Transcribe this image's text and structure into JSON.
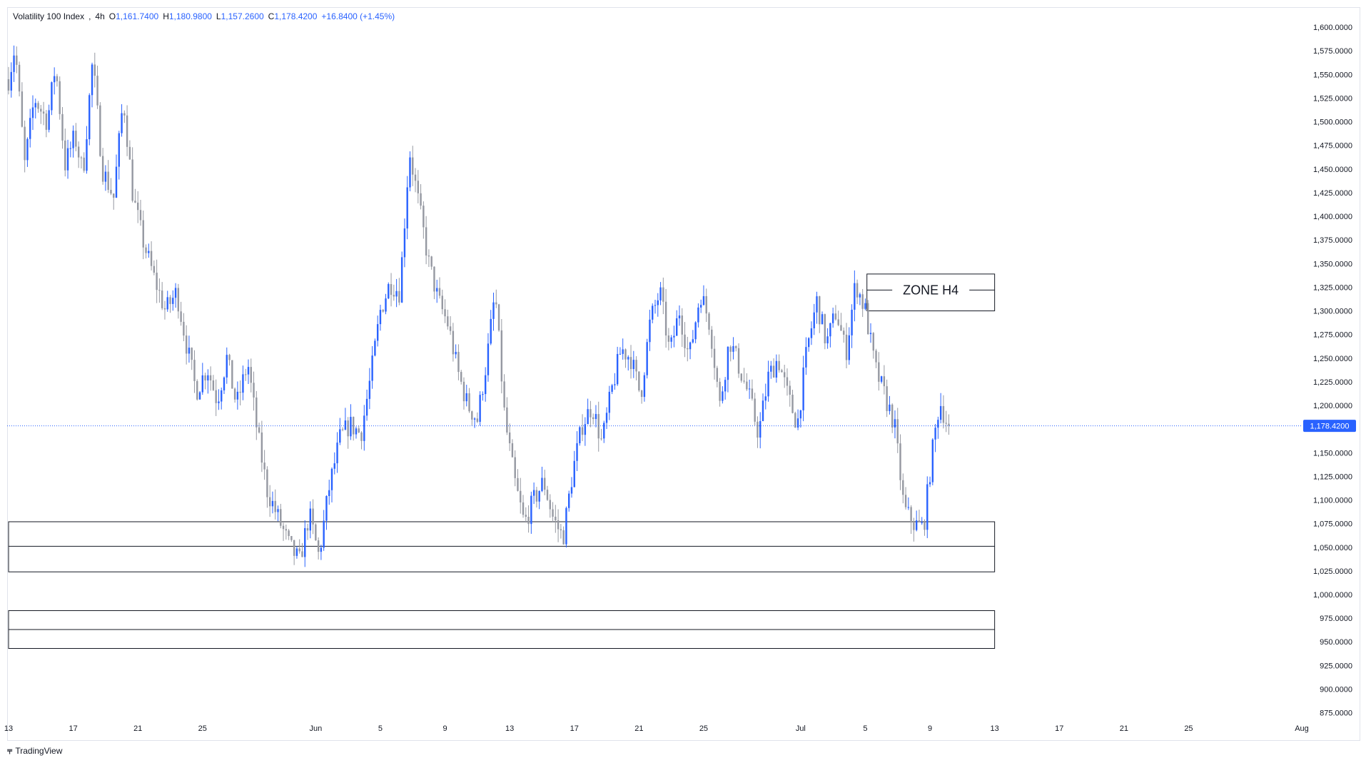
{
  "legend": {
    "symbol": "Volatility 100 Index",
    "timeframe": "4h",
    "open_label": "O",
    "open": "1,161.7400",
    "high_label": "H",
    "high": "1,180.9800",
    "low_label": "L",
    "low": "1,157.2600",
    "close_label": "C",
    "close": "1,178.4200",
    "change": "+16.8400 (+1.45%)"
  },
  "branding": {
    "logo_text": "TradingView"
  },
  "colors": {
    "up": "#2962ff",
    "down": "#9598a1",
    "price_line": "#2962ff",
    "zone": "#131722"
  },
  "chart_data": {
    "type": "candlestick",
    "current_price": 1178.42,
    "current_price_label": "1,178.4200",
    "y_ticks": [
      1600,
      1575,
      1550,
      1525,
      1500,
      1475,
      1450,
      1425,
      1400,
      1375,
      1350,
      1325,
      1300,
      1275,
      1250,
      1225,
      1200,
      1150,
      1125,
      1100,
      1075,
      1050,
      1025,
      1000,
      975,
      950,
      925,
      900,
      875
    ],
    "y_tick_labels": [
      "1,600.0000",
      "1,575.0000",
      "1,550.0000",
      "1,525.0000",
      "1,500.0000",
      "1,475.0000",
      "1,450.0000",
      "1,425.0000",
      "1,400.0000",
      "1,375.0000",
      "1,350.0000",
      "1,325.0000",
      "1,300.0000",
      "1,275.0000",
      "1,250.0000",
      "1,225.0000",
      "1,200.0000",
      "1,150.0000",
      "1,125.0000",
      "1,100.0000",
      "1,075.0000",
      "1,050.0000",
      "1,025.0000",
      "1,000.0000",
      "975.0000",
      "950.0000",
      "925.0000",
      "900.0000",
      "875.0000"
    ],
    "ylim": [
      865,
      1620
    ],
    "x_ticks": [
      {
        "day": 13,
        "label": "13"
      },
      {
        "day": 17,
        "label": "17"
      },
      {
        "day": 21,
        "label": "21"
      },
      {
        "day": 25,
        "label": "25"
      },
      {
        "day": 32,
        "label": "Jun"
      },
      {
        "day": 36,
        "label": "5"
      },
      {
        "day": 40,
        "label": "9"
      },
      {
        "day": 44,
        "label": "13"
      },
      {
        "day": 48,
        "label": "17"
      },
      {
        "day": 52,
        "label": "21"
      },
      {
        "day": 56,
        "label": "25"
      },
      {
        "day": 62,
        "label": "Jul"
      },
      {
        "day": 66,
        "label": "5"
      },
      {
        "day": 70,
        "label": "9"
      },
      {
        "day": 74,
        "label": "13"
      },
      {
        "day": 78,
        "label": "17"
      },
      {
        "day": 82,
        "label": "21"
      },
      {
        "day": 86,
        "label": "25"
      },
      {
        "day": 93,
        "label": "Aug"
      }
    ],
    "xlim": [
      13.0,
      94.5
    ],
    "path": [
      {
        "day": 13.0,
        "price": 1545
      },
      {
        "day": 13.4,
        "price": 1580
      },
      {
        "day": 14.0,
        "price": 1455
      },
      {
        "day": 14.6,
        "price": 1525
      },
      {
        "day": 15.4,
        "price": 1500
      },
      {
        "day": 15.9,
        "price": 1560
      },
      {
        "day": 16.5,
        "price": 1455
      },
      {
        "day": 17.1,
        "price": 1485
      },
      {
        "day": 17.6,
        "price": 1445
      },
      {
        "day": 18.2,
        "price": 1565
      },
      {
        "day": 18.8,
        "price": 1450
      },
      {
        "day": 19.5,
        "price": 1420
      },
      {
        "day": 20.1,
        "price": 1525
      },
      {
        "day": 20.7,
        "price": 1420
      },
      {
        "day": 21.3,
        "price": 1375
      },
      {
        "day": 22.0,
        "price": 1335
      },
      {
        "day": 22.7,
        "price": 1300
      },
      {
        "day": 23.4,
        "price": 1320
      },
      {
        "day": 24.0,
        "price": 1265
      },
      {
        "day": 24.6,
        "price": 1215
      },
      {
        "day": 25.3,
        "price": 1240
      },
      {
        "day": 25.9,
        "price": 1205
      },
      {
        "day": 26.5,
        "price": 1250
      },
      {
        "day": 27.1,
        "price": 1200
      },
      {
        "day": 27.8,
        "price": 1245
      },
      {
        "day": 28.4,
        "price": 1170
      },
      {
        "day": 29.0,
        "price": 1110
      },
      {
        "day": 29.7,
        "price": 1080
      },
      {
        "day": 30.4,
        "price": 1050
      },
      {
        "day": 31.0,
        "price": 1035
      },
      {
        "day": 31.6,
        "price": 1085
      },
      {
        "day": 32.2,
        "price": 1040
      },
      {
        "day": 32.8,
        "price": 1110
      },
      {
        "day": 33.5,
        "price": 1165
      },
      {
        "day": 34.1,
        "price": 1180
      },
      {
        "day": 34.8,
        "price": 1170
      },
      {
        "day": 35.4,
        "price": 1230
      },
      {
        "day": 36.0,
        "price": 1300
      },
      {
        "day": 36.6,
        "price": 1330
      },
      {
        "day": 37.2,
        "price": 1320
      },
      {
        "day": 37.8,
        "price": 1470
      },
      {
        "day": 38.4,
        "price": 1410
      },
      {
        "day": 39.0,
        "price": 1350
      },
      {
        "day": 39.6,
        "price": 1310
      },
      {
        "day": 40.2,
        "price": 1285
      },
      {
        "day": 40.8,
        "price": 1235
      },
      {
        "day": 41.4,
        "price": 1200
      },
      {
        "day": 42.0,
        "price": 1185
      },
      {
        "day": 42.6,
        "price": 1250
      },
      {
        "day": 43.1,
        "price": 1320
      },
      {
        "day": 43.7,
        "price": 1185
      },
      {
        "day": 44.3,
        "price": 1120
      },
      {
        "day": 44.9,
        "price": 1075
      },
      {
        "day": 45.5,
        "price": 1100
      },
      {
        "day": 46.1,
        "price": 1120
      },
      {
        "day": 46.7,
        "price": 1080
      },
      {
        "day": 47.3,
        "price": 1060
      },
      {
        "day": 47.9,
        "price": 1130
      },
      {
        "day": 48.5,
        "price": 1180
      },
      {
        "day": 49.1,
        "price": 1200
      },
      {
        "day": 49.7,
        "price": 1160
      },
      {
        "day": 50.3,
        "price": 1215
      },
      {
        "day": 50.9,
        "price": 1260
      },
      {
        "day": 51.5,
        "price": 1250
      },
      {
        "day": 52.1,
        "price": 1210
      },
      {
        "day": 52.7,
        "price": 1290
      },
      {
        "day": 53.3,
        "price": 1320
      },
      {
        "day": 53.9,
        "price": 1255
      },
      {
        "day": 54.5,
        "price": 1300
      },
      {
        "day": 55.1,
        "price": 1250
      },
      {
        "day": 55.8,
        "price": 1320
      },
      {
        "day": 56.4,
        "price": 1285
      },
      {
        "day": 57.0,
        "price": 1200
      },
      {
        "day": 57.6,
        "price": 1270
      },
      {
        "day": 58.2,
        "price": 1240
      },
      {
        "day": 58.8,
        "price": 1210
      },
      {
        "day": 59.4,
        "price": 1170
      },
      {
        "day": 60.0,
        "price": 1230
      },
      {
        "day": 60.6,
        "price": 1250
      },
      {
        "day": 61.2,
        "price": 1210
      },
      {
        "day": 61.8,
        "price": 1180
      },
      {
        "day": 62.4,
        "price": 1260
      },
      {
        "day": 63.0,
        "price": 1310
      },
      {
        "day": 63.6,
        "price": 1265
      },
      {
        "day": 64.2,
        "price": 1300
      },
      {
        "day": 64.8,
        "price": 1255
      },
      {
        "day": 65.4,
        "price": 1330
      },
      {
        "day": 66.0,
        "price": 1300
      },
      {
        "day": 66.6,
        "price": 1240
      },
      {
        "day": 67.2,
        "price": 1210
      },
      {
        "day": 67.8,
        "price": 1180
      },
      {
        "day": 68.4,
        "price": 1090
      },
      {
        "day": 69.0,
        "price": 1075
      },
      {
        "day": 69.6,
        "price": 1070
      },
      {
        "day": 70.1,
        "price": 1145
      },
      {
        "day": 70.6,
        "price": 1205
      },
      {
        "day": 71.1,
        "price": 1178.42
      }
    ],
    "zones": [
      {
        "label": "ZONE H4",
        "top": 1339,
        "mid": 1322,
        "bottom": 1300,
        "start_day": 66.1,
        "end_day": 74.0
      },
      {
        "label": "",
        "top": 1077,
        "mid": 1051,
        "bottom": 1024,
        "start_day": 13.0,
        "end_day": 74.0
      },
      {
        "label": "",
        "top": 983,
        "mid": 963,
        "bottom": 943,
        "start_day": 13.0,
        "end_day": 74.0
      }
    ]
  }
}
